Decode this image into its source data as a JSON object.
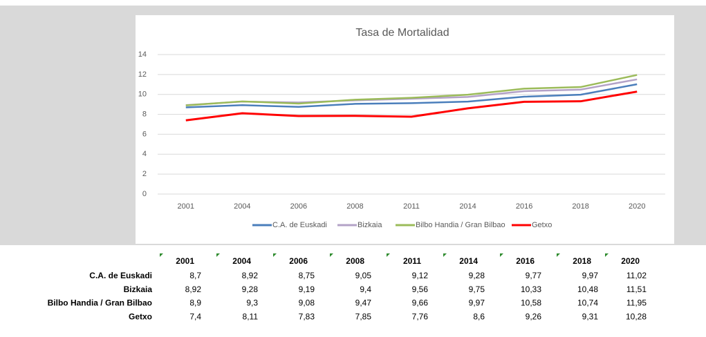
{
  "chart_data": {
    "type": "line",
    "title": "Tasa de Mortalidad",
    "categories": [
      "2001",
      "2004",
      "2006",
      "2008",
      "2011",
      "2014",
      "2016",
      "2018",
      "2020"
    ],
    "ylim": [
      0,
      14
    ],
    "yticks": [
      0,
      2,
      4,
      6,
      8,
      10,
      12,
      14
    ],
    "grid": true,
    "legend": "bottom",
    "series": [
      {
        "name": "C.A. de Euskadi",
        "color": "#4a7ebb",
        "values": [
          8.7,
          8.92,
          8.75,
          9.05,
          9.12,
          9.28,
          9.77,
          9.97,
          11.02
        ],
        "value_labels": [
          "8,7",
          "8,92",
          "8,75",
          "9,05",
          "9,12",
          "9,28",
          "9,77",
          "9,97",
          "11,02"
        ]
      },
      {
        "name": "Bizkaia",
        "color": "#b3a2c7",
        "values": [
          8.92,
          9.28,
          9.19,
          9.4,
          9.56,
          9.75,
          10.33,
          10.48,
          11.51
        ],
        "value_labels": [
          "8,92",
          "9,28",
          "9,19",
          "9,4",
          "9,56",
          "9,75",
          "10,33",
          "10,48",
          "11,51"
        ]
      },
      {
        "name": "Bilbo Handia / Gran Bilbao",
        "color": "#9bbb59",
        "values": [
          8.9,
          9.3,
          9.08,
          9.47,
          9.66,
          9.97,
          10.58,
          10.74,
          11.95
        ],
        "value_labels": [
          "8,9",
          "9,3",
          "9,08",
          "9,47",
          "9,66",
          "9,97",
          "10,58",
          "10,74",
          "11,95"
        ]
      },
      {
        "name": "Getxo",
        "color": "#ff0000",
        "values": [
          7.4,
          8.11,
          7.83,
          7.85,
          7.76,
          8.6,
          9.26,
          9.31,
          10.28
        ],
        "value_labels": [
          "7,4",
          "8,11",
          "7,83",
          "7,85",
          "7,76",
          "8,6",
          "9,26",
          "9,31",
          "10,28"
        ]
      }
    ]
  }
}
